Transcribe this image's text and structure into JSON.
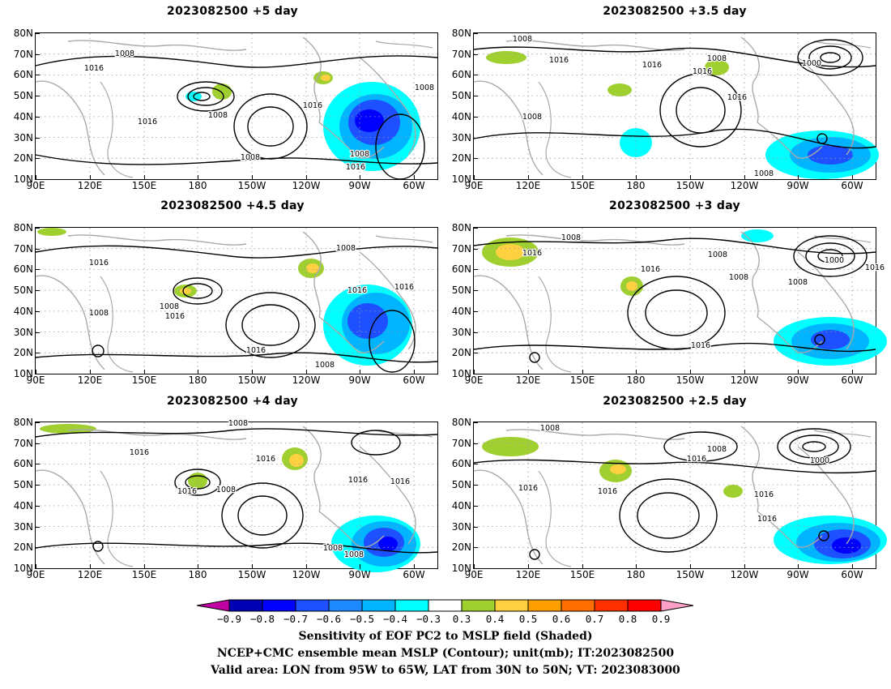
{
  "panels": [
    {
      "title": "2023082500  +5  day",
      "contour_labels": [
        "1008",
        "1016",
        "1008",
        "1016",
        "1008",
        "1016",
        "1008",
        "1016",
        "1008"
      ]
    },
    {
      "title": "2023082500  +3.5  day",
      "contour_labels": [
        "1008",
        "1016",
        "1016",
        "1008",
        "1016",
        "1016",
        "1000",
        "1008",
        "1008"
      ]
    },
    {
      "title": "2023082500  +4.5  day",
      "contour_labels": [
        "1016",
        "1008",
        "1016",
        "1008",
        "1016",
        "1016",
        "1016",
        "1008",
        "1008"
      ]
    },
    {
      "title": "2023082500  +3  day",
      "contour_labels": [
        "1008",
        "1016",
        "1016",
        "1008",
        "1016",
        "1008",
        "1000",
        "1016",
        "1008"
      ]
    },
    {
      "title": "2023082500  +4  day",
      "contour_labels": [
        "1008",
        "1016",
        "1016",
        "1008",
        "1016",
        "1016",
        "1016",
        "1008",
        "1008"
      ]
    },
    {
      "title": "2023082500  +2.5  day",
      "contour_labels": [
        "1008",
        "1008",
        "1016",
        "1016",
        "1016",
        "1016",
        "1000",
        "1016"
      ]
    }
  ],
  "axes": {
    "lat_labels": [
      "80N",
      "70N",
      "60N",
      "50N",
      "40N",
      "30N",
      "20N",
      "10N"
    ],
    "lon_labels": [
      "90E",
      "120E",
      "150E",
      "180",
      "150W",
      "120W",
      "90W",
      "60W"
    ]
  },
  "colorbar": {
    "labels": [
      "−0.9",
      "−0.8",
      "−0.7",
      "−0.6",
      "−0.5",
      "−0.4",
      "−0.3",
      "0.3",
      "0.4",
      "0.5",
      "0.6",
      "0.7",
      "0.8",
      "0.9"
    ],
    "colors": [
      "#c000a0",
      "#0000b4",
      "#0000ff",
      "#1e50ff",
      "#1e88ff",
      "#00b4ff",
      "#00ffff",
      "#ffffff",
      "#a0d030",
      "#ffd040",
      "#ffa000",
      "#ff7000",
      "#ff3000",
      "#ff0000",
      "#ffa0c8"
    ]
  },
  "captions": {
    "line1": "Sensitivity of EOF PC2 to MSLP field (Shaded)",
    "line2": "NCEP+CMC ensemble mean MSLP (Contour); unit(mb); IT:2023082500",
    "line3": "Valid area: LON from 95W to 65W, LAT from 30N to 50N; VT: 2023083000"
  }
}
